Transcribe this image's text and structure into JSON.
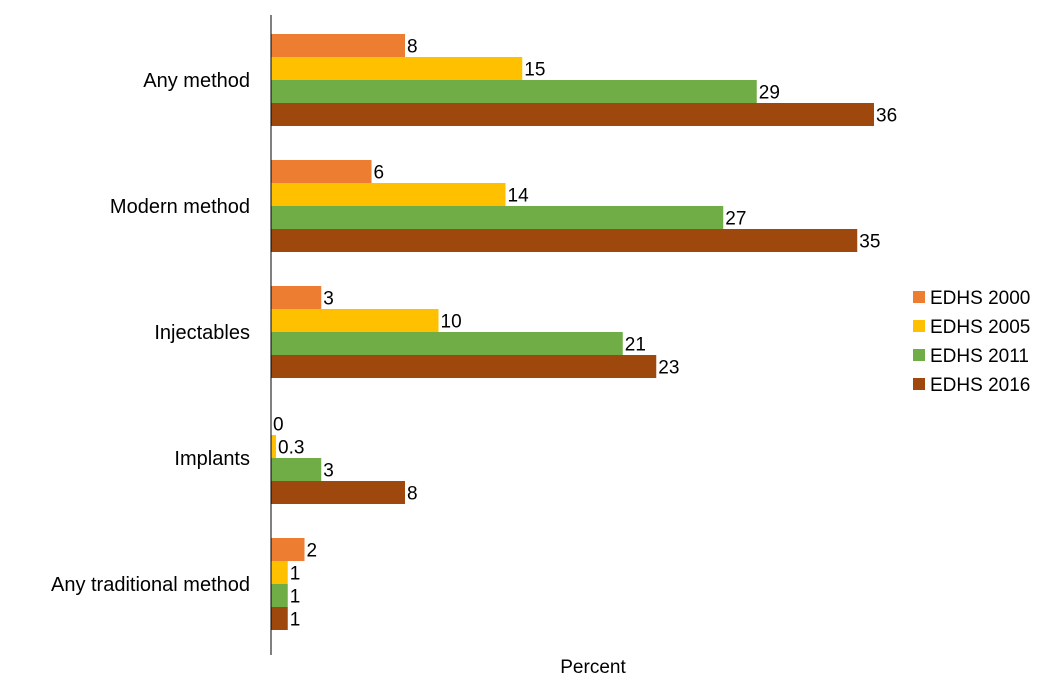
{
  "chart_data": {
    "type": "bar",
    "orientation": "horizontal",
    "categories": [
      "Any method",
      "Modern method",
      "Injectables",
      "Implants",
      "Any traditional method"
    ],
    "series": [
      {
        "name": "EDHS 2000",
        "color": "#ED7D31",
        "values": [
          8,
          6,
          3,
          0,
          2
        ],
        "labels": [
          "8",
          "6",
          "3",
          "0",
          "2"
        ]
      },
      {
        "name": "EDHS 2005",
        "color": "#FFC000",
        "values": [
          15,
          14,
          10,
          0.3,
          1
        ],
        "labels": [
          "15",
          "14",
          "10",
          "0.3",
          "1"
        ]
      },
      {
        "name": "EDHS 2011",
        "color": "#70AD47",
        "values": [
          29,
          27,
          21,
          3,
          1
        ],
        "labels": [
          "29",
          "27",
          "21",
          "3",
          "1"
        ]
      },
      {
        "name": "EDHS 2016",
        "color": "#9E480E",
        "values": [
          36,
          35,
          23,
          8,
          1
        ],
        "labels": [
          "36",
          "35",
          "23",
          "8",
          "1"
        ]
      }
    ],
    "xlabel": "Percent",
    "xlim": [
      0,
      40
    ],
    "grid": false,
    "legend": "right"
  }
}
